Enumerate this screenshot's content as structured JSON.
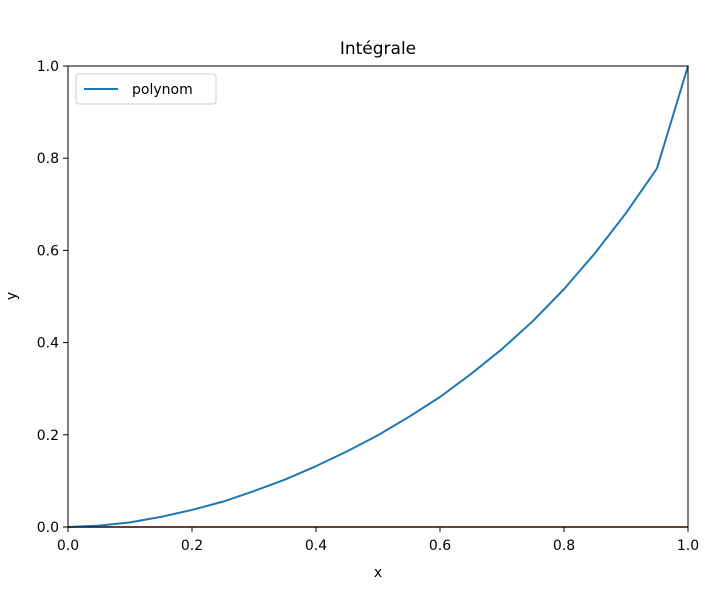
{
  "chart_data": {
    "type": "line",
    "title": "Intégrale",
    "xlabel": "x",
    "ylabel": "y",
    "xlim": [
      0.0,
      1.0
    ],
    "ylim": [
      0.0,
      1.0
    ],
    "xticks": [
      "0.0",
      "0.2",
      "0.4",
      "0.6",
      "0.8",
      "1.0"
    ],
    "yticks": [
      "0.0",
      "0.2",
      "0.4",
      "0.6",
      "0.8",
      "1.0"
    ],
    "grid": false,
    "legend_position": "upper-left",
    "series": [
      {
        "name": "polynom",
        "color": "#1f77b4",
        "x": [
          0.0,
          0.05,
          0.1,
          0.15,
          0.2,
          0.25,
          0.3,
          0.35,
          0.4,
          0.45,
          0.5,
          0.55,
          0.6,
          0.65,
          0.7,
          0.75,
          0.8,
          0.85,
          0.9,
          0.95,
          1.0
        ],
        "y": [
          0.0,
          0.003,
          0.01,
          0.022,
          0.037,
          0.055,
          0.078,
          0.103,
          0.132,
          0.164,
          0.199,
          0.239,
          0.282,
          0.332,
          0.386,
          0.447,
          0.516,
          0.594,
          0.681,
          0.778,
          1.0
        ]
      }
    ],
    "baseline": {
      "y": 0.0,
      "color": "#8b0000"
    }
  }
}
